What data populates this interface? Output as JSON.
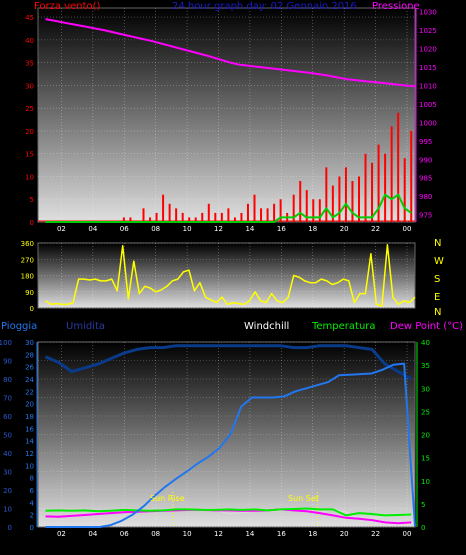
{
  "header": {
    "title": "24 hour graph day: 02 Gennaio 2016",
    "left_label": "Forza vento()",
    "right_label": "Pressione"
  },
  "labels": {
    "pioggia": "Pioggia",
    "umidita": "Umidita",
    "windchill": "Windchill",
    "temperatura": "Temperatura",
    "dewpoint": "Dew Point (°C)",
    "sunrise": "Sun Rise",
    "sunset": "Sun Set",
    "compass": [
      "N",
      "W",
      "S",
      "E",
      "N"
    ]
  },
  "colors": {
    "wind": "#ff0000",
    "gust": "#00cc00",
    "pressure": "#ff00ff",
    "direction": "#ffff00",
    "humidity": "#0a3a8a",
    "rain": "#2277ee",
    "temperature": "#00ee00",
    "dewpoint": "#ff00ff",
    "windchill": "#dddddd"
  },
  "chart_data": [
    {
      "type": "line",
      "x_tick_labels": [
        "02",
        "04",
        "06",
        "08",
        "10",
        "12",
        "14",
        "16",
        "18",
        "20",
        "22",
        "00"
      ],
      "y_left": {
        "ticks": [
          0,
          5,
          10,
          15,
          20,
          25,
          30,
          35,
          40,
          45
        ],
        "ylim": [
          0,
          47
        ]
      },
      "y_right": {
        "ticks": [
          975,
          980,
          985,
          990,
          995,
          1000,
          1005,
          1010,
          1015,
          1020,
          1025,
          1030
        ],
        "ylim": [
          973,
          1031
        ]
      },
      "series": [
        {
          "name": "Forza vento",
          "axis": "left",
          "values": [
            0,
            0,
            0,
            0,
            0,
            0,
            0,
            0,
            0,
            0,
            0,
            0,
            1,
            1,
            0,
            3,
            1,
            2,
            6,
            4,
            3,
            2,
            1,
            1,
            2,
            4,
            2,
            2,
            3,
            1,
            2,
            4,
            6,
            3,
            3,
            4,
            5,
            2,
            6,
            9,
            7,
            5,
            5,
            12,
            8,
            10,
            12,
            9,
            10,
            15,
            13,
            17,
            15,
            21,
            24,
            14,
            20
          ]
        },
        {
          "name": "Raffica",
          "axis": "left",
          "values": [
            0,
            0,
            0,
            0,
            0,
            0,
            0,
            0,
            0,
            0,
            0,
            0,
            0,
            0,
            0,
            0,
            0,
            0,
            0,
            0,
            0,
            0,
            0,
            0,
            0,
            0,
            0,
            0,
            0,
            0,
            0,
            0,
            0,
            0,
            0,
            0,
            1,
            1,
            1,
            2,
            1,
            1,
            1,
            3,
            1,
            2,
            4,
            2,
            1,
            1,
            1,
            3,
            6,
            5,
            6,
            3,
            2
          ]
        },
        {
          "name": "Pressione",
          "axis": "right",
          "values": [
            1028,
            1027.5,
            1027,
            1026.5,
            1026,
            1025.5,
            1025,
            1024.4,
            1023.8,
            1023.2,
            1022.6,
            1022,
            1021.3,
            1020.6,
            1019.9,
            1019.2,
            1018.5,
            1017.8,
            1017,
            1016.2,
            1015.6,
            1015.3,
            1015,
            1014.7,
            1014.4,
            1014.1,
            1013.8,
            1013.5,
            1013.1,
            1012.7,
            1012.2,
            1011.7,
            1011.4,
            1011.1,
            1010.9,
            1010.6,
            1010.3,
            1010,
            1009.8
          ]
        }
      ]
    },
    {
      "type": "line",
      "x_tick_labels": [
        "02",
        "04",
        "06",
        "08",
        "10",
        "12",
        "14",
        "16",
        "18",
        "20",
        "22",
        "00"
      ],
      "y_left": {
        "ticks": [
          0,
          90,
          180,
          270,
          360
        ],
        "ylim": [
          0,
          360
        ]
      },
      "series": [
        {
          "name": "Direzione",
          "values": [
            40,
            20,
            25,
            20,
            20,
            30,
            160,
            160,
            155,
            160,
            150,
            150,
            160,
            95,
            345,
            50,
            260,
            80,
            120,
            110,
            90,
            100,
            120,
            150,
            160,
            200,
            210,
            95,
            140,
            60,
            45,
            30,
            60,
            20,
            30,
            25,
            20,
            40,
            90,
            40,
            30,
            80,
            40,
            30,
            60,
            180,
            170,
            150,
            140,
            140,
            160,
            150,
            130,
            140,
            160,
            150,
            30,
            80,
            80,
            300,
            20,
            10,
            350,
            60,
            20,
            40,
            30,
            60
          ]
        }
      ]
    },
    {
      "type": "line",
      "x_tick_labels": [
        "02",
        "04",
        "06",
        "08",
        "10",
        "12",
        "14",
        "16",
        "18",
        "20",
        "22",
        "00"
      ],
      "y_left": {
        "ticks": [
          0,
          10,
          20,
          30,
          40,
          50,
          60,
          70,
          80,
          90,
          100
        ],
        "ylim": [
          0,
          100
        ]
      },
      "y_rain": {
        "ticks": [
          0,
          2,
          4,
          6,
          8,
          10,
          12,
          14,
          16,
          18,
          20,
          22,
          24,
          26,
          28,
          30
        ],
        "ylim": [
          0,
          30
        ]
      },
      "y_right": {
        "ticks": [
          0,
          5,
          10,
          15,
          20,
          25,
          30,
          35,
          40
        ],
        "ylim": [
          0,
          40
        ]
      },
      "series": [
        {
          "name": "Umidita",
          "axis": "left",
          "values": [
            92,
            89,
            84,
            86,
            88,
            91,
            94,
            96,
            97,
            97,
            98,
            98,
            98,
            98,
            98,
            98,
            98,
            98,
            98,
            97,
            97,
            98,
            98,
            98,
            97,
            96,
            88,
            84,
            80
          ]
        },
        {
          "name": "Pioggia",
          "axis": "rain",
          "values": [
            0,
            0,
            0,
            0,
            0,
            0,
            0.3,
            1,
            2,
            3.3,
            5,
            6.5,
            7.8,
            9,
            10.3,
            11.4,
            12.8,
            15,
            19.5,
            21,
            21,
            21,
            21.2,
            22,
            22.5,
            23,
            23.5,
            24.6,
            24.7,
            24.8,
            24.9,
            25.5,
            26.3,
            26.5,
            0.1
          ]
        },
        {
          "name": "Temperatura",
          "axis": "right",
          "values": [
            3.5,
            3.6,
            3.5,
            3.6,
            3.4,
            3.5,
            3.7,
            3.6,
            3.5,
            3.6,
            3.8,
            3.8,
            3.7,
            3.7,
            3.8,
            3.7,
            3.8,
            3.6,
            3.8,
            3.9,
            4,
            3.8,
            3.8,
            2.5,
            3,
            2.8,
            2.5,
            2.6,
            2.7
          ]
        },
        {
          "name": "Dew Point",
          "axis": "right",
          "values": [
            2.3,
            2.2,
            2.4,
            2.6,
            2.8,
            3,
            3.2,
            3.3,
            3.4,
            3.5,
            3.6,
            3.7,
            3.7,
            3.6,
            3.6,
            3.5,
            3.5,
            3.6,
            3.8,
            3.6,
            3.4,
            3,
            2.5,
            2,
            1.8,
            1.5,
            1,
            0.8,
            1
          ]
        },
        {
          "name": "Windchill",
          "axis": "right",
          "values": [
            3.4,
            3.5,
            3.4,
            3.5,
            3.3,
            3.4,
            3.6,
            3.5,
            3.4,
            3.5,
            3.7,
            3.7,
            3.6,
            3.6,
            2.9,
            3.1,
            3.4,
            3.5,
            3.5,
            3.6,
            3.5,
            3.2,
            3.8,
            3.3,
            1.8,
            2,
            2.2,
            2.5,
            2.7
          ]
        }
      ]
    }
  ]
}
